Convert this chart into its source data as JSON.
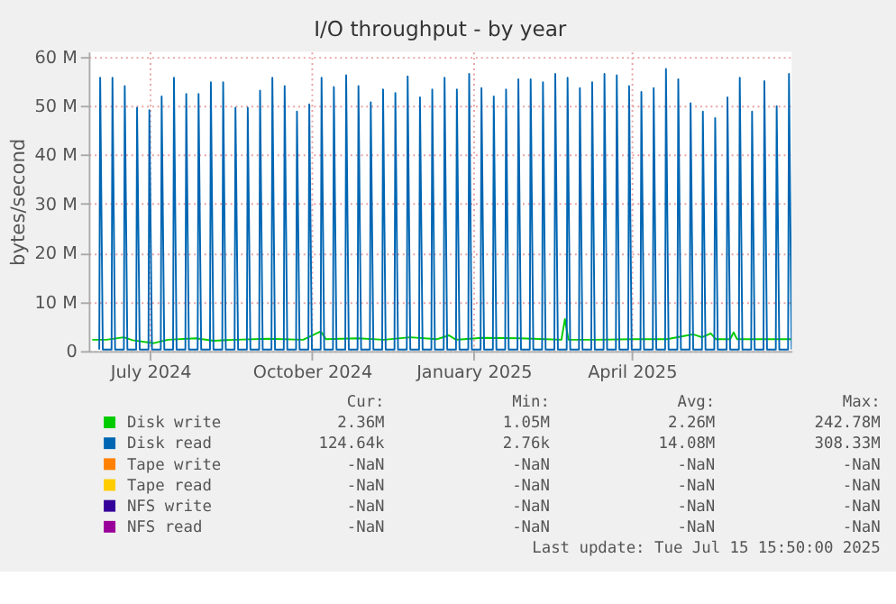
{
  "chart_data": {
    "type": "line",
    "title": "I/O throughput - by year",
    "ylabel": "bytes/second",
    "xlim": [
      "2024-06-10",
      "2025-07-15"
    ],
    "xticks": [
      {
        "value": "2024-07-15",
        "label": "July 2024"
      },
      {
        "value": "2024-10-15",
        "label": "October 2024"
      },
      {
        "value": "2025-01-15",
        "label": "January 2025"
      },
      {
        "value": "2025-04-15",
        "label": "April 2025"
      }
    ],
    "ylim": [
      0,
      61
    ],
    "yticks": [
      0,
      {
        "value": 10,
        "label": "10 M"
      },
      {
        "value": 20,
        "label": "20 M"
      },
      {
        "value": 30,
        "label": "30 M"
      },
      {
        "value": 40,
        "label": "40 M"
      },
      {
        "value": 50,
        "label": "50 M"
      },
      {
        "value": 60,
        "label": "60 M"
      }
    ],
    "grid": true,
    "legend": "bottom",
    "line_style": "solid",
    "marker": "none",
    "annotations": [
      "Cur:",
      "Min:",
      "Avg:",
      "Max:",
      "2.36M",
      "1.05M",
      "2.26M",
      "242.78M",
      "124.64k",
      "2.76k",
      "14.08M",
      "308.33M",
      "-NaN",
      "-NaN",
      "-NaN",
      "-NaN",
      "-NaN",
      "-NaN",
      "-NaN",
      "-NaN",
      "-NaN",
      "-NaN",
      "-NaN",
      "-NaN",
      "-NaN",
      "-NaN",
      "-NaN",
      "-NaN",
      "Last update: Tue Jul 15 15:50:00 2025"
    ],
    "series": [
      {
        "name": "Disk write",
        "color": "#00cc00",
        "x": [
          "2024-06-12",
          "2024-06-20",
          "2024-06-30",
          "2024-07-05",
          "2024-07-17",
          "2024-07-25",
          "2024-08-10",
          "2024-08-20",
          "2024-09-01",
          "2024-09-20",
          "2024-10-10",
          "2024-10-20",
          "2024-10-23",
          "2024-11-10",
          "2024-11-25",
          "2024-12-10",
          "2024-12-25",
          "2025-01-01",
          "2025-01-05",
          "2025-01-20",
          "2025-02-10",
          "2025-02-25",
          "2025-03-06",
          "2025-03-08",
          "2025-03-10",
          "2025-03-25",
          "2025-04-15",
          "2025-05-05",
          "2025-05-20",
          "2025-05-25",
          "2025-05-30",
          "2025-06-02",
          "2025-06-10",
          "2025-06-12",
          "2025-06-14",
          "2025-06-25",
          "2025-07-10",
          "2025-07-15"
        ],
        "values": [
          2.3,
          2.3,
          2.8,
          2.2,
          1.6,
          2.3,
          2.6,
          2.1,
          2.3,
          2.5,
          2.3,
          4.0,
          2.4,
          2.6,
          2.3,
          2.8,
          2.4,
          3.2,
          2.3,
          2.7,
          2.6,
          2.4,
          2.3,
          6.5,
          2.3,
          2.3,
          2.4,
          2.4,
          3.4,
          2.8,
          3.6,
          2.4,
          2.4,
          3.8,
          2.4,
          2.4,
          2.4,
          2.4
        ]
      },
      {
        "name": "Disk read",
        "color": "#0066b3",
        "x": [
          "2024-06-16T00:00",
          "2024-06-16T12:00",
          "2024-06-18",
          "2024-06-23T00:00",
          "2024-06-23T12:00",
          "2024-06-25",
          "2024-06-30T00:00",
          "2024-06-30T12:00",
          "2024-07-02",
          "2024-07-07T00:00",
          "2024-07-07T12:00",
          "2024-07-09",
          "2024-07-14T00:00",
          "2024-07-14T12:00",
          "2024-07-16",
          "2024-07-21T00:00",
          "2024-07-21T12:00",
          "2024-07-23",
          "2024-07-28T00:00",
          "2024-07-28T12:00",
          "2024-07-30",
          "2024-08-04T00:00",
          "2024-08-04T12:00",
          "2024-08-06",
          "2024-08-11T00:00",
          "2024-08-11T12:00",
          "2024-08-13",
          "2024-08-18T00:00",
          "2024-08-18T12:00",
          "2024-08-20",
          "2024-08-25T00:00",
          "2024-08-25T12:00",
          "2024-08-27",
          "2024-09-01T00:00",
          "2024-09-01T12:00",
          "2024-09-03",
          "2024-09-08T00:00",
          "2024-09-08T12:00",
          "2024-09-10",
          "2024-09-15T00:00",
          "2024-09-15T12:00",
          "2024-09-17",
          "2024-09-22T00:00",
          "2024-09-22T12:00",
          "2024-09-24",
          "2024-09-29T00:00",
          "2024-09-29T12:00",
          "2024-10-01",
          "2024-10-06T00:00",
          "2024-10-06T12:00",
          "2024-10-08",
          "2024-10-13T00:00",
          "2024-10-13T12:00",
          "2024-10-15",
          "2024-10-20T00:00",
          "2024-10-20T12:00",
          "2024-10-22",
          "2024-10-27T00:00",
          "2024-10-27T12:00",
          "2024-10-29",
          "2024-11-03T00:00",
          "2024-11-03T12:00",
          "2024-11-05",
          "2024-11-10T00:00",
          "2024-11-10T12:00",
          "2024-11-12",
          "2024-11-17T00:00",
          "2024-11-17T12:00",
          "2024-11-19",
          "2024-11-24T00:00",
          "2024-11-24T12:00",
          "2024-11-26",
          "2024-12-01T00:00",
          "2024-12-01T12:00",
          "2024-12-03",
          "2024-12-08T00:00",
          "2024-12-08T12:00",
          "2024-12-10",
          "2024-12-15T00:00",
          "2024-12-15T12:00",
          "2024-12-17",
          "2024-12-22T00:00",
          "2024-12-22T12:00",
          "2024-12-24",
          "2024-12-29T00:00",
          "2024-12-29T12:00",
          "2024-12-31",
          "2025-01-05T00:00",
          "2025-01-05T12:00",
          "2025-01-07",
          "2025-01-12T00:00",
          "2025-01-12T12:00",
          "2025-01-14",
          "2025-01-19T00:00",
          "2025-01-19T12:00",
          "2025-01-21",
          "2025-01-26T00:00",
          "2025-01-26T12:00",
          "2025-01-28",
          "2025-02-02T00:00",
          "2025-02-02T12:00",
          "2025-02-04",
          "2025-02-09T00:00",
          "2025-02-09T12:00",
          "2025-02-11",
          "2025-02-16T00:00",
          "2025-02-16T12:00",
          "2025-02-18",
          "2025-02-23T00:00",
          "2025-02-23T12:00",
          "2025-02-25",
          "2025-03-02T00:00",
          "2025-03-02T12:00",
          "2025-03-04",
          "2025-03-09T00:00",
          "2025-03-09T12:00",
          "2025-03-11",
          "2025-03-16T00:00",
          "2025-03-16T12:00",
          "2025-03-18",
          "2025-03-23T00:00",
          "2025-03-23T12:00",
          "2025-03-25",
          "2025-03-30T00:00",
          "2025-03-30T12:00",
          "2025-04-01",
          "2025-04-06T00:00",
          "2025-04-06T12:00",
          "2025-04-08",
          "2025-04-13T00:00",
          "2025-04-13T12:00",
          "2025-04-15",
          "2025-04-20T00:00",
          "2025-04-20T12:00",
          "2025-04-22",
          "2025-04-27T00:00",
          "2025-04-27T12:00",
          "2025-04-29",
          "2025-05-04T00:00",
          "2025-05-04T12:00",
          "2025-05-06",
          "2025-05-11T00:00",
          "2025-05-11T12:00",
          "2025-05-13",
          "2025-05-18T00:00",
          "2025-05-18T12:00",
          "2025-05-20",
          "2025-05-25T00:00",
          "2025-05-25T12:00",
          "2025-05-27",
          "2025-06-01T00:00",
          "2025-06-01T12:00",
          "2025-06-03",
          "2025-06-08T00:00",
          "2025-06-08T12:00",
          "2025-06-10",
          "2025-06-15T00:00",
          "2025-06-15T12:00",
          "2025-06-17",
          "2025-06-22T00:00",
          "2025-06-22T12:00",
          "2025-06-24",
          "2025-06-29T00:00",
          "2025-06-29T12:00",
          "2025-07-01",
          "2025-07-06T00:00",
          "2025-07-06T12:00",
          "2025-07-08",
          "2025-07-13T00:00",
          "2025-07-13T12:00",
          "2025-07-15"
        ],
        "values": [
          0.3,
          55.7,
          0.3,
          0.3,
          55.7,
          0.3,
          0.3,
          54.0,
          0.3,
          0.3,
          49.6,
          0.3,
          0.3,
          49.1,
          0.3,
          0.3,
          51.9,
          0.3,
          0.3,
          55.7,
          0.3,
          0.3,
          52.4,
          0.3,
          0.3,
          52.4,
          0.3,
          0.3,
          54.8,
          0.3,
          0.3,
          54.8,
          0.3,
          0.3,
          49.6,
          0.3,
          0.3,
          49.6,
          0.3,
          0.3,
          53.1,
          0.3,
          0.3,
          55.7,
          0.3,
          0.3,
          54.0,
          0.3,
          0.3,
          48.8,
          0.3,
          0.3,
          50.3,
          0.3,
          0.3,
          55.7,
          0.3,
          0.3,
          53.8,
          0.3,
          0.3,
          56.2,
          0.3,
          0.3,
          54.0,
          0.3,
          0.3,
          50.7,
          0.3,
          0.3,
          53.3,
          0.3,
          0.3,
          52.6,
          0.3,
          0.3,
          56.0,
          0.3,
          0.3,
          51.7,
          0.3,
          0.3,
          53.3,
          0.3,
          0.3,
          55.7,
          0.3,
          0.3,
          53.3,
          0.3,
          0.3,
          56.5,
          0.3,
          0.3,
          53.6,
          0.3,
          0.3,
          51.9,
          0.3,
          0.3,
          53.3,
          0.3,
          0.3,
          55.4,
          0.3,
          0.3,
          55.4,
          0.3,
          0.3,
          54.8,
          0.3,
          0.3,
          56.5,
          0.3,
          0.3,
          55.7,
          0.3,
          0.3,
          53.6,
          0.3,
          0.3,
          54.8,
          0.3,
          0.3,
          56.5,
          0.3,
          0.3,
          56.2,
          0.3,
          0.3,
          54.0,
          0.3,
          0.3,
          52.8,
          0.3,
          0.3,
          53.6,
          0.3,
          0.3,
          57.5,
          0.3,
          0.3,
          55.4,
          0.3,
          0.3,
          50.5,
          0.3,
          0.3,
          48.8,
          0.3,
          0.3,
          47.5,
          0.3,
          0.3,
          51.7,
          0.3,
          0.3,
          55.7,
          0.3,
          0.3,
          48.8,
          0.3,
          0.3,
          55.0,
          0.3,
          0.3,
          49.9,
          0.3,
          0.3,
          56.5,
          0.3
        ]
      },
      {
        "name": "Tape write",
        "color": "#ff8000"
      },
      {
        "name": "Tape read",
        "color": "#ffcc00"
      },
      {
        "name": "NFS write",
        "color": "#330099"
      },
      {
        "name": "NFS read",
        "color": "#990099"
      }
    ]
  }
}
